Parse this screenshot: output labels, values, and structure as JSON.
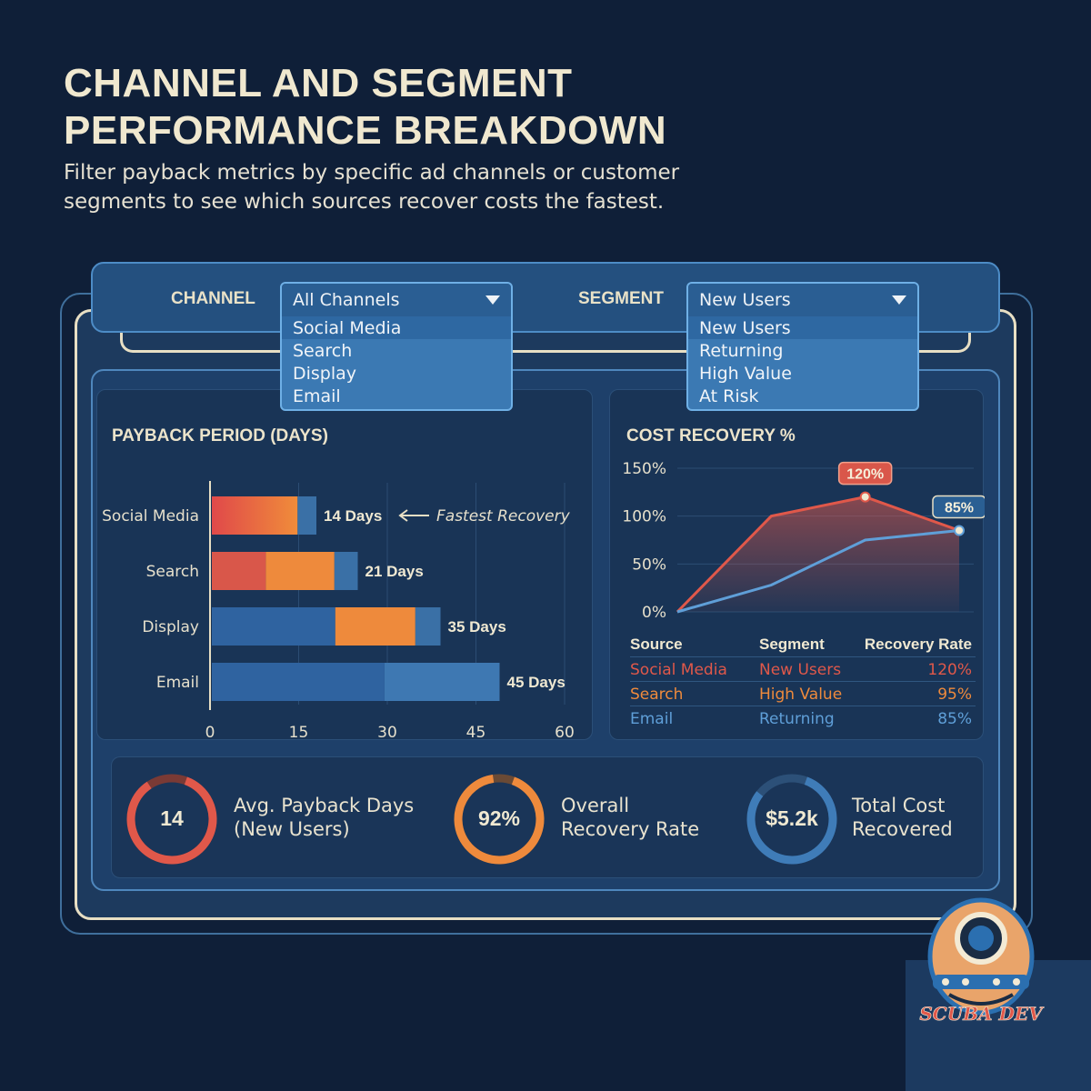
{
  "header": {
    "title_line1": "CHANNEL AND SEGMENT",
    "title_line2": "PERFORMANCE BREAKDOWN",
    "subtitle": "Filter payback metrics by specific ad channels or customer segments to see which sources recover costs the fastest."
  },
  "filters": {
    "channel": {
      "label": "CHANNEL",
      "selected": "All Channels",
      "options": [
        "Social Media",
        "Search",
        "Display",
        "Email"
      ]
    },
    "segment": {
      "label": "SEGMENT",
      "selected": "New Users",
      "options": [
        "New Users",
        "Returning",
        "High Value",
        "At Risk"
      ]
    }
  },
  "payback_card": {
    "title": "PAYBACK PERIOD (DAYS)",
    "annotation": "Fastest Recovery"
  },
  "recovery_card": {
    "title": "COST RECOVERY %",
    "table": {
      "headers": [
        "Source",
        "Segment",
        "Recovery Rate"
      ],
      "rows": [
        {
          "source": "Social Media",
          "segment": "New Users",
          "rate": "120%"
        },
        {
          "source": "Search",
          "segment": "High Value",
          "rate": "95%"
        },
        {
          "source": "Email",
          "segment": "Returning",
          "rate": "85%"
        }
      ]
    }
  },
  "kpis": [
    {
      "value": "14",
      "label_line1": "Avg. Payback Days",
      "label_line2": "(New Users)",
      "progress": 0.85
    },
    {
      "value": "92%",
      "label_line1": "Overall",
      "label_line2": "Recovery Rate",
      "progress": 0.92
    },
    {
      "value": "$5.2k",
      "label_line1": "Total Cost",
      "label_line2": "Recovered",
      "progress": 0.8
    }
  ],
  "colors": {
    "red": "#e0584a",
    "orange": "#ee8a3c",
    "blue": "#3a70a6",
    "light_blue": "#5f9fd8",
    "cream": "#e8dfc4"
  },
  "chart_data": [
    {
      "type": "bar",
      "orientation": "horizontal",
      "title": "PAYBACK PERIOD (DAYS)",
      "categories": [
        "Social Media",
        "Search",
        "Display",
        "Email"
      ],
      "values": [
        14,
        21,
        35,
        45
      ],
      "value_labels": [
        "14 Days",
        "21 Days",
        "35 Days",
        "45 Days"
      ],
      "xlim": [
        0,
        60
      ],
      "xticks": [
        "0",
        "15",
        "30",
        "45",
        "60"
      ],
      "annotation": {
        "category": "Social Media",
        "text": "Fastest Recovery"
      }
    },
    {
      "type": "area",
      "title": "COST RECOVERY %",
      "yticks": [
        "0%",
        "50%",
        "100%",
        "150%"
      ],
      "ylim": [
        0,
        150
      ],
      "series": [
        {
          "name": "Social Media",
          "color": "#e0584a",
          "values": [
            0,
            100,
            120,
            85
          ]
        },
        {
          "name": "Email",
          "color": "#5f9fd8",
          "values": [
            0,
            28,
            75,
            85
          ]
        }
      ],
      "point_labels": [
        {
          "series": "Social Media",
          "index": 2,
          "text": "120%"
        },
        {
          "series": "Email",
          "index": 3,
          "text": "85%"
        }
      ]
    }
  ],
  "logo": {
    "text": "SCUBA DEV"
  }
}
